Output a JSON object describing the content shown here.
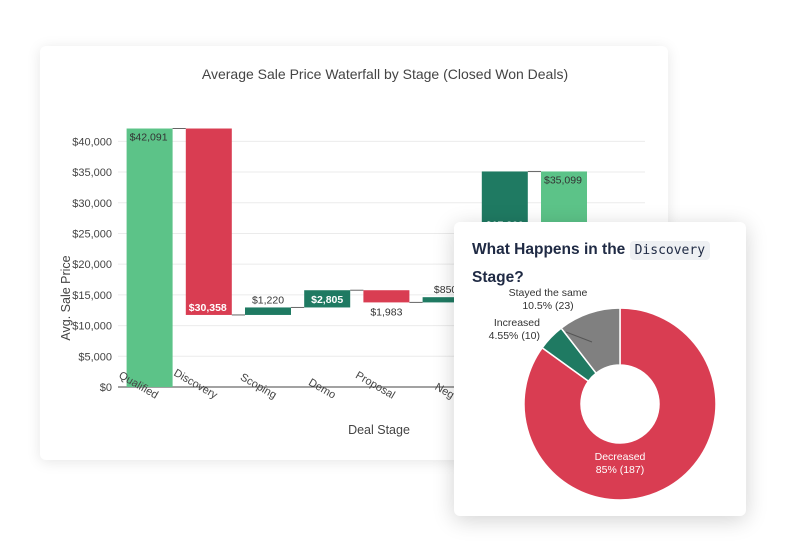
{
  "waterfall": {
    "title": "Average Sale Price Waterfall by Stage (Closed Won Deals)",
    "xlabel": "Deal Stage",
    "ylabel": "Avg. Sale Price",
    "colors": {
      "increase": "#5cc388",
      "decrease": "#d93d52",
      "delta_up": "#1f7a62"
    }
  },
  "donut": {
    "title_prefix": "What Happens in the ",
    "title_code": "Discovery",
    "title_suffix": "Stage?",
    "slices": [
      {
        "name": "Decreased",
        "percent_label": "85% (187)",
        "color": "#d93d52"
      },
      {
        "name": "Increased",
        "percent_label": "4.55% (10)",
        "color": "#1f7a62"
      },
      {
        "name": "Stayed the same",
        "percent_label": "10.5% (23)",
        "color": "#808080"
      }
    ]
  },
  "chart_data": [
    {
      "type": "bar",
      "subtype": "waterfall",
      "title": "Average Sale Price Waterfall by Stage (Closed Won Deals)",
      "xlabel": "Deal Stage",
      "ylabel": "Avg. Sale Price",
      "ylim": [
        0,
        42500
      ],
      "yticks": [
        "$0",
        "$5,000",
        "$10,000",
        "$15,000",
        "$20,000",
        "$25,000",
        "$30,000",
        "$35,000",
        "$40,000"
      ],
      "categories": [
        "Qualified",
        "Discovery",
        "Scoping",
        "Demo",
        "Proposal",
        "Neg",
        "",
        ""
      ],
      "bars": [
        {
          "start": 0,
          "end": 42091,
          "label": "$42,091",
          "kind": "total"
        },
        {
          "start": 42091,
          "end": 11733,
          "label": "$30,358",
          "kind": "decrease"
        },
        {
          "start": 11733,
          "end": 12953,
          "label": "$1,220",
          "kind": "increase"
        },
        {
          "start": 12953,
          "end": 15758,
          "label": "$2,805",
          "kind": "increase"
        },
        {
          "start": 15758,
          "end": 13775,
          "label": "$1,983",
          "kind": "decrease"
        },
        {
          "start": 13775,
          "end": 14625,
          "label": "$850",
          "kind": "increase"
        },
        {
          "start": 17899,
          "end": 35099,
          "label": "$17,200",
          "kind": "increase"
        },
        {
          "start": 0,
          "end": 35099,
          "label": "$35,099",
          "kind": "total"
        }
      ],
      "grid": true
    },
    {
      "type": "pie",
      "subtype": "donut",
      "title": "What Happens in the Discovery Stage?",
      "labels": [
        "Decreased",
        "Increased",
        "Stayed the same"
      ],
      "values": [
        85,
        4.55,
        10.5
      ],
      "counts": [
        187,
        10,
        23
      ]
    }
  ]
}
